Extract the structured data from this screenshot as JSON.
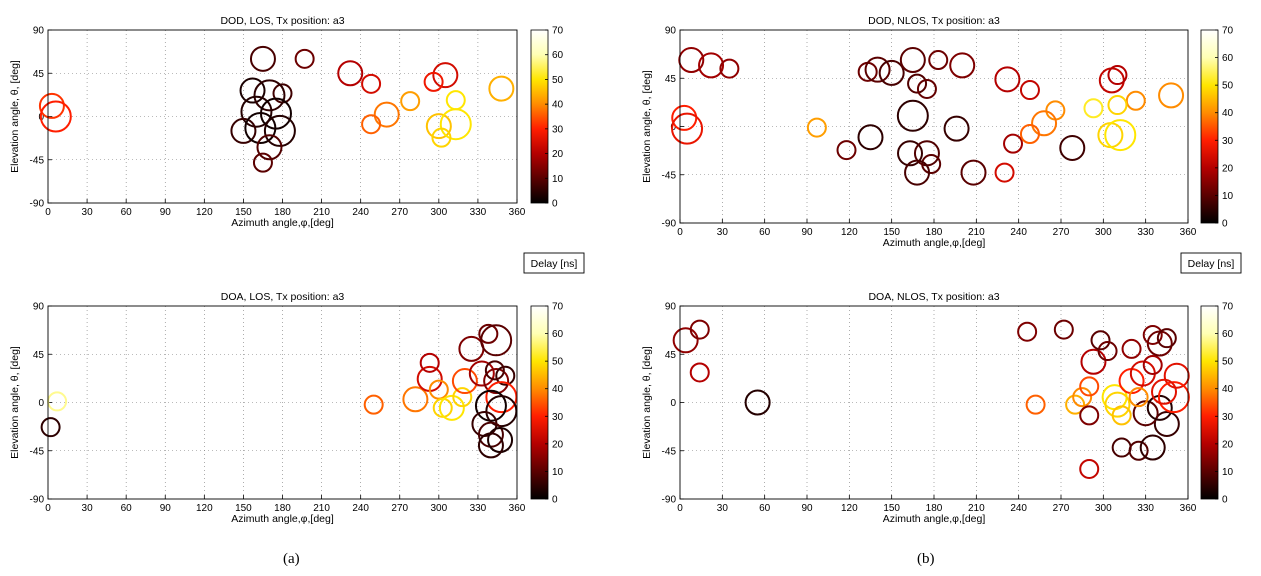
{
  "figure": {
    "sub_captions": [
      "(a)",
      "(b)"
    ],
    "colorbar_ticks": [
      "0",
      "10",
      "20",
      "30",
      "40",
      "50",
      "60",
      "70"
    ],
    "colorbar_range": [
      0,
      70
    ],
    "colormap": [
      "#000000",
      "#5a0000",
      "#b40000",
      "#ff1e00",
      "#ff8c00",
      "#ffe600",
      "#ffffb4",
      "#ffffff"
    ],
    "delay_label": "Delay [ns]"
  },
  "chart_data": [
    {
      "type": "scatter",
      "title": "DOD, LOS, Tx position: a3",
      "xlabel": "Azimuth angle,φ,[deg]",
      "ylabel": "Elevation angle, θ, [deg]",
      "xlim": [
        0,
        360
      ],
      "ylim": [
        -90,
        90
      ],
      "xticks": [
        "0",
        "30",
        "60",
        "90",
        "120",
        "150",
        "180",
        "210",
        "240",
        "270",
        "300",
        "330",
        "360"
      ],
      "yticks": [
        "90",
        "45",
        "0",
        "-45",
        "-90"
      ],
      "grid": true,
      "colorbar_label": "Delay [ns]",
      "points": [
        {
          "az": 3,
          "el": 11,
          "delay": 32,
          "size": 2
        },
        {
          "az": 6,
          "el": 0,
          "delay": 30,
          "size": 3
        },
        {
          "az": 165,
          "el": 60,
          "delay": 8,
          "size": 2
        },
        {
          "az": 197,
          "el": 60,
          "delay": 12,
          "size": 1
        },
        {
          "az": 157,
          "el": 27,
          "delay": 3,
          "size": 2
        },
        {
          "az": 180,
          "el": 24,
          "delay": 7,
          "size": 1
        },
        {
          "az": 170,
          "el": 22,
          "delay": 5,
          "size": 3
        },
        {
          "az": 160,
          "el": 5,
          "delay": 4,
          "size": 3
        },
        {
          "az": 175,
          "el": 3,
          "delay": 2,
          "size": 3
        },
        {
          "az": 150,
          "el": -15,
          "delay": 6,
          "size": 2
        },
        {
          "az": 163,
          "el": -12,
          "delay": 2,
          "size": 3
        },
        {
          "az": 178,
          "el": -15,
          "delay": 4,
          "size": 3
        },
        {
          "az": 170,
          "el": -32,
          "delay": 9,
          "size": 2
        },
        {
          "az": 165,
          "el": -48,
          "delay": 10,
          "size": 1
        },
        {
          "az": 232,
          "el": 45,
          "delay": 20,
          "size": 2
        },
        {
          "az": 248,
          "el": 34,
          "delay": 24,
          "size": 1
        },
        {
          "az": 305,
          "el": 43,
          "delay": 24,
          "size": 2
        },
        {
          "az": 296,
          "el": 36,
          "delay": 28,
          "size": 1
        },
        {
          "az": 348,
          "el": 29,
          "delay": 44,
          "size": 2
        },
        {
          "az": 278,
          "el": 16,
          "delay": 42,
          "size": 1
        },
        {
          "az": 313,
          "el": 17,
          "delay": 50,
          "size": 1
        },
        {
          "az": 260,
          "el": 2,
          "delay": 38,
          "size": 2
        },
        {
          "az": 248,
          "el": -8,
          "delay": 36,
          "size": 1
        },
        {
          "az": 300,
          "el": -10,
          "delay": 46,
          "size": 2
        },
        {
          "az": 313,
          "el": -8,
          "delay": 50,
          "size": 3
        },
        {
          "az": 302,
          "el": -22,
          "delay": 48,
          "size": 1
        }
      ]
    },
    {
      "type": "scatter",
      "title": "DOD, NLOS, Tx position: a3",
      "xlabel": "Azimuth angle,φ,[deg]",
      "ylabel": "Elevation angle, θ, [deg]",
      "xlim": [
        0,
        360
      ],
      "ylim": [
        -90,
        90
      ],
      "xticks": [
        "0",
        "30",
        "60",
        "90",
        "120",
        "150",
        "180",
        "210",
        "240",
        "270",
        "300",
        "330",
        "360"
      ],
      "yticks": [
        "90",
        "45",
        "0",
        "-45",
        "-90"
      ],
      "grid": true,
      "colorbar_label": "Delay [ns]",
      "points": [
        {
          "az": 8,
          "el": 62,
          "delay": 16,
          "size": 2
        },
        {
          "az": 22,
          "el": 57,
          "delay": 18,
          "size": 2
        },
        {
          "az": 35,
          "el": 54,
          "delay": 16,
          "size": 1
        },
        {
          "az": 3,
          "el": 8,
          "delay": 30,
          "size": 2
        },
        {
          "az": 5,
          "el": -2,
          "delay": 27,
          "size": 3
        },
        {
          "az": 97,
          "el": -1,
          "delay": 42,
          "size": 1
        },
        {
          "az": 133,
          "el": 51,
          "delay": 12,
          "size": 1
        },
        {
          "az": 140,
          "el": 53,
          "delay": 10,
          "size": 2
        },
        {
          "az": 150,
          "el": 50,
          "delay": 8,
          "size": 2
        },
        {
          "az": 165,
          "el": 62,
          "delay": 10,
          "size": 2
        },
        {
          "az": 183,
          "el": 62,
          "delay": 12,
          "size": 1
        },
        {
          "az": 200,
          "el": 57,
          "delay": 14,
          "size": 2
        },
        {
          "az": 168,
          "el": 40,
          "delay": 9,
          "size": 1
        },
        {
          "az": 175,
          "el": 35,
          "delay": 11,
          "size": 1
        },
        {
          "az": 165,
          "el": 10,
          "delay": 5,
          "size": 3
        },
        {
          "az": 196,
          "el": -2,
          "delay": 6,
          "size": 2
        },
        {
          "az": 135,
          "el": -10,
          "delay": 5,
          "size": 2
        },
        {
          "az": 118,
          "el": -22,
          "delay": 12,
          "size": 1
        },
        {
          "az": 163,
          "el": -25,
          "delay": 6,
          "size": 2
        },
        {
          "az": 175,
          "el": -25,
          "delay": 9,
          "size": 2
        },
        {
          "az": 178,
          "el": -35,
          "delay": 10,
          "size": 1
        },
        {
          "az": 168,
          "el": -43,
          "delay": 8,
          "size": 2
        },
        {
          "az": 208,
          "el": -43,
          "delay": 10,
          "size": 2
        },
        {
          "az": 230,
          "el": -43,
          "delay": 24,
          "size": 1
        },
        {
          "az": 278,
          "el": -20,
          "delay": 7,
          "size": 2
        },
        {
          "az": 236,
          "el": -16,
          "delay": 18,
          "size": 1
        },
        {
          "az": 232,
          "el": 44,
          "delay": 20,
          "size": 2
        },
        {
          "az": 248,
          "el": 34,
          "delay": 22,
          "size": 1
        },
        {
          "az": 306,
          "el": 43,
          "delay": 22,
          "size": 2
        },
        {
          "az": 310,
          "el": 48,
          "delay": 20,
          "size": 1
        },
        {
          "az": 348,
          "el": 29,
          "delay": 40,
          "size": 2
        },
        {
          "az": 323,
          "el": 24,
          "delay": 40,
          "size": 1
        },
        {
          "az": 293,
          "el": 17,
          "delay": 52,
          "size": 1
        },
        {
          "az": 266,
          "el": 15,
          "delay": 40,
          "size": 1
        },
        {
          "az": 258,
          "el": 3,
          "delay": 38,
          "size": 2
        },
        {
          "az": 248,
          "el": -7,
          "delay": 36,
          "size": 1
        },
        {
          "az": 305,
          "el": -8,
          "delay": 48,
          "size": 2
        },
        {
          "az": 312,
          "el": -8,
          "delay": 50,
          "size": 3
        },
        {
          "az": 310,
          "el": 20,
          "delay": 48,
          "size": 1
        }
      ]
    },
    {
      "type": "scatter",
      "title": "DOA, LOS, Tx position: a3",
      "xlabel": "Azimuth angle,φ,[deg]",
      "ylabel": "Elevation angle, θ, [deg]",
      "xlim": [
        0,
        360
      ],
      "ylim": [
        -90,
        90
      ],
      "xticks": [
        "0",
        "30",
        "60",
        "90",
        "120",
        "150",
        "180",
        "210",
        "240",
        "270",
        "300",
        "330",
        "360"
      ],
      "yticks": [
        "90",
        "45",
        "0",
        "-45",
        "-90"
      ],
      "grid": true,
      "colorbar_label": "",
      "points": [
        {
          "az": 7,
          "el": 1,
          "delay": 58,
          "size": 1
        },
        {
          "az": 2,
          "el": -23,
          "delay": 5,
          "size": 1
        },
        {
          "az": 250,
          "el": -2,
          "delay": 36,
          "size": 1
        },
        {
          "az": 282,
          "el": 3,
          "delay": 38,
          "size": 2
        },
        {
          "az": 293,
          "el": 22,
          "delay": 24,
          "size": 2
        },
        {
          "az": 293,
          "el": 37,
          "delay": 20,
          "size": 1
        },
        {
          "az": 300,
          "el": 12,
          "delay": 40,
          "size": 1
        },
        {
          "az": 303,
          "el": -5,
          "delay": 48,
          "size": 1
        },
        {
          "az": 310,
          "el": -5,
          "delay": 50,
          "size": 2
        },
        {
          "az": 318,
          "el": 5,
          "delay": 48,
          "size": 1
        },
        {
          "az": 320,
          "el": 20,
          "delay": 34,
          "size": 2
        },
        {
          "az": 325,
          "el": 50,
          "delay": 14,
          "size": 2
        },
        {
          "az": 338,
          "el": 64,
          "delay": 12,
          "size": 1
        },
        {
          "az": 344,
          "el": 58,
          "delay": 10,
          "size": 3
        },
        {
          "az": 333,
          "el": 27,
          "delay": 18,
          "size": 2
        },
        {
          "az": 344,
          "el": 20,
          "delay": 14,
          "size": 2
        },
        {
          "az": 351,
          "el": 25,
          "delay": 6,
          "size": 1
        },
        {
          "az": 343,
          "el": 30,
          "delay": 8,
          "size": 1
        },
        {
          "az": 348,
          "el": 5,
          "delay": 30,
          "size": 3
        },
        {
          "az": 340,
          "el": -3,
          "delay": 2,
          "size": 3
        },
        {
          "az": 348,
          "el": -8,
          "delay": 4,
          "size": 3
        },
        {
          "az": 335,
          "el": -20,
          "delay": 6,
          "size": 2
        },
        {
          "az": 340,
          "el": -30,
          "delay": 8,
          "size": 2
        },
        {
          "az": 347,
          "el": -35,
          "delay": 3,
          "size": 2
        },
        {
          "az": 340,
          "el": -40,
          "delay": 5,
          "size": 2
        }
      ]
    },
    {
      "type": "scatter",
      "title": "DOA, NLOS, Tx position: a3",
      "xlabel": "Azimuth angle,φ,[deg]",
      "ylabel": "Elevation angle, θ, [deg]",
      "xlim": [
        0,
        360
      ],
      "ylim": [
        -90,
        90
      ],
      "xticks": [
        "0",
        "30",
        "60",
        "90",
        "120",
        "150",
        "180",
        "210",
        "240",
        "270",
        "300",
        "330",
        "360"
      ],
      "yticks": [
        "90",
        "45",
        "0",
        "-45",
        "-90"
      ],
      "grid": true,
      "colorbar_label": "",
      "points": [
        {
          "az": 4,
          "el": 58,
          "delay": 16,
          "size": 2
        },
        {
          "az": 14,
          "el": 68,
          "delay": 14,
          "size": 1
        },
        {
          "az": 14,
          "el": 28,
          "delay": 20,
          "size": 1
        },
        {
          "az": 55,
          "el": 0,
          "delay": 4,
          "size": 2
        },
        {
          "az": 246,
          "el": 66,
          "delay": 14,
          "size": 1
        },
        {
          "az": 272,
          "el": 68,
          "delay": 12,
          "size": 1
        },
        {
          "az": 252,
          "el": -2,
          "delay": 36,
          "size": 1
        },
        {
          "az": 280,
          "el": -2,
          "delay": 44,
          "size": 1
        },
        {
          "az": 285,
          "el": 5,
          "delay": 40,
          "size": 1
        },
        {
          "az": 290,
          "el": 15,
          "delay": 34,
          "size": 1
        },
        {
          "az": 293,
          "el": 38,
          "delay": 20,
          "size": 2
        },
        {
          "az": 298,
          "el": 58,
          "delay": 10,
          "size": 1
        },
        {
          "az": 303,
          "el": 48,
          "delay": 12,
          "size": 1
        },
        {
          "az": 308,
          "el": 5,
          "delay": 50,
          "size": 2
        },
        {
          "az": 310,
          "el": -2,
          "delay": 48,
          "size": 2
        },
        {
          "az": 313,
          "el": -12,
          "delay": 46,
          "size": 1
        },
        {
          "az": 290,
          "el": -12,
          "delay": 14,
          "size": 1
        },
        {
          "az": 290,
          "el": -62,
          "delay": 22,
          "size": 1
        },
        {
          "az": 313,
          "el": -42,
          "delay": 8,
          "size": 1
        },
        {
          "az": 325,
          "el": -45,
          "delay": 9,
          "size": 1
        },
        {
          "az": 335,
          "el": -42,
          "delay": 5,
          "size": 2
        },
        {
          "az": 345,
          "el": -20,
          "delay": 6,
          "size": 2
        },
        {
          "az": 330,
          "el": -10,
          "delay": 10,
          "size": 2
        },
        {
          "az": 340,
          "el": -5,
          "delay": 4,
          "size": 2
        },
        {
          "az": 320,
          "el": 20,
          "delay": 30,
          "size": 2
        },
        {
          "az": 328,
          "el": 27,
          "delay": 24,
          "size": 2
        },
        {
          "az": 335,
          "el": 35,
          "delay": 18,
          "size": 1
        },
        {
          "az": 340,
          "el": 55,
          "delay": 12,
          "size": 2
        },
        {
          "az": 335,
          "el": 63,
          "delay": 14,
          "size": 1
        },
        {
          "az": 345,
          "el": 60,
          "delay": 10,
          "size": 1
        },
        {
          "az": 320,
          "el": 50,
          "delay": 16,
          "size": 1
        },
        {
          "az": 352,
          "el": 25,
          "delay": 26,
          "size": 2
        },
        {
          "az": 350,
          "el": 5,
          "delay": 30,
          "size": 3
        },
        {
          "az": 343,
          "el": 10,
          "delay": 26,
          "size": 2
        },
        {
          "az": 325,
          "el": 5,
          "delay": 40,
          "size": 1
        }
      ]
    }
  ]
}
